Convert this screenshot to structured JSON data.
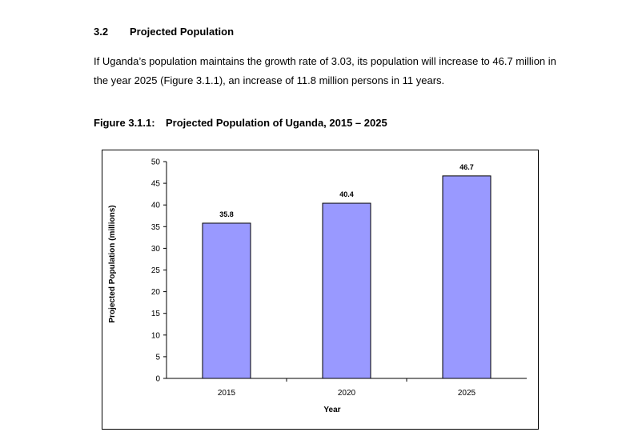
{
  "section": {
    "number": "3.2",
    "title": "Projected Population"
  },
  "paragraph": {
    "line1": "If Uganda’s population maintains the growth rate of 3.03, its population will increase to 46.7 million in",
    "line2": "the year 2025 (Figure 3.1.1), an increase of 11.8 million persons in 11 years."
  },
  "figure": {
    "label": "Figure 3.1.1:",
    "title": "Projected Population of Uganda, 2015 – 2025"
  },
  "colors": {
    "bar_fill": "#9999ff",
    "bar_stroke": "#000000"
  },
  "chart_data": {
    "type": "bar",
    "categories": [
      "2015",
      "2020",
      "2025"
    ],
    "values": [
      35.8,
      40.4,
      46.7
    ],
    "data_labels": [
      "35.8",
      "40.4",
      "46.7"
    ],
    "title": "",
    "xlabel": "Year",
    "ylabel": "Projected Population (millions)",
    "ylim": [
      0,
      50
    ],
    "yticks": [
      "0",
      "5",
      "10",
      "15",
      "20",
      "25",
      "30",
      "35",
      "40",
      "45",
      "50"
    ],
    "grid": false,
    "legend": "none"
  }
}
